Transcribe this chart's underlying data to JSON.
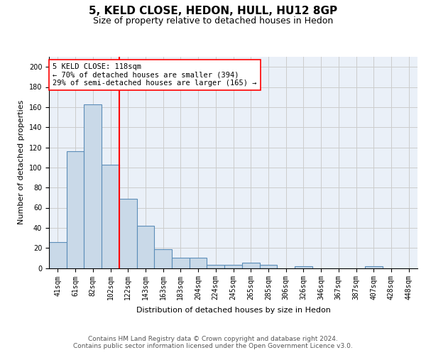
{
  "title1": "5, KELD CLOSE, HEDON, HULL, HU12 8GP",
  "title2": "Size of property relative to detached houses in Hedon",
  "xlabel": "Distribution of detached houses by size in Hedon",
  "ylabel": "Number of detached properties",
  "bar_labels": [
    "41sqm",
    "61sqm",
    "82sqm",
    "102sqm",
    "122sqm",
    "143sqm",
    "163sqm",
    "183sqm",
    "204sqm",
    "224sqm",
    "245sqm",
    "265sqm",
    "285sqm",
    "306sqm",
    "326sqm",
    "346sqm",
    "367sqm",
    "387sqm",
    "407sqm",
    "428sqm",
    "448sqm"
  ],
  "bar_values": [
    26,
    116,
    163,
    103,
    69,
    42,
    19,
    10,
    10,
    3,
    3,
    5,
    3,
    0,
    2,
    0,
    0,
    0,
    2,
    0,
    0
  ],
  "bar_color": "#c9d9e8",
  "bar_edge_color": "#5b8db8",
  "bar_edge_width": 0.8,
  "vline_color": "red",
  "vline_linewidth": 1.5,
  "annotation_text": "5 KELD CLOSE: 118sqm\n← 70% of detached houses are smaller (394)\n29% of semi-detached houses are larger (165) →",
  "annotation_box_color": "white",
  "annotation_box_edge": "red",
  "ylim": [
    0,
    210
  ],
  "yticks": [
    0,
    20,
    40,
    60,
    80,
    100,
    120,
    140,
    160,
    180,
    200
  ],
  "grid_color": "#cccccc",
  "bg_color": "#eaf0f8",
  "footer_text": "Contains HM Land Registry data © Crown copyright and database right 2024.\nContains public sector information licensed under the Open Government Licence v3.0.",
  "title1_fontsize": 11,
  "title2_fontsize": 9,
  "xlabel_fontsize": 8,
  "ylabel_fontsize": 8,
  "tick_fontsize": 7,
  "footer_fontsize": 6.5,
  "annotation_fontsize": 7.5
}
